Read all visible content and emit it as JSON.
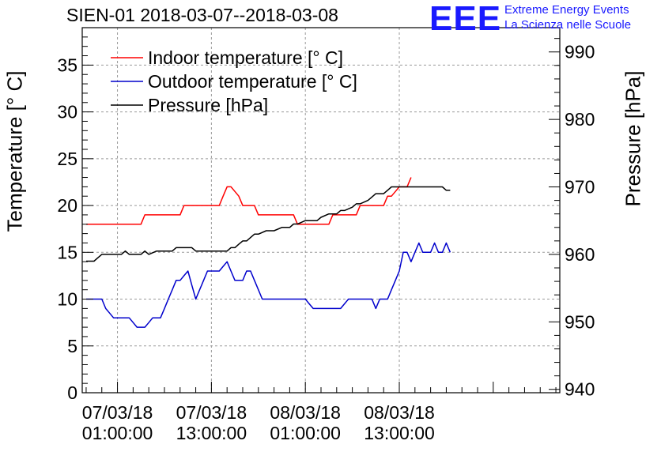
{
  "chart_data": {
    "type": "line",
    "title": "SIEN-01 2018-03-07--2018-03-08",
    "ylabel": "Temperature [° C]",
    "y2label": "Pressure [hPa]",
    "ylim": [
      0,
      39
    ],
    "y2lim": [
      939.5,
      993.6
    ],
    "xlim": [
      -4.5,
      56.5
    ],
    "y_ticks": [
      0,
      5,
      10,
      15,
      20,
      25,
      30,
      35
    ],
    "y2_ticks": [
      940,
      950,
      960,
      970,
      980,
      990
    ],
    "x_ticks": [
      {
        "x": 0,
        "date": "07/03/18",
        "time": "01:00:00"
      },
      {
        "x": 12,
        "date": "07/03/18",
        "time": "13:00:00"
      },
      {
        "x": 24,
        "date": "08/03/18",
        "time": "01:00:00"
      },
      {
        "x": 36,
        "date": "08/03/18",
        "time": "13:00:00"
      }
    ],
    "grid": true,
    "legend_position": "top-left",
    "series": [
      {
        "name": "Indoor temperature [° C]",
        "axis": "left",
        "color": "#ff0000",
        "points": [
          [
            -4,
            18
          ],
          [
            -3,
            18
          ],
          [
            -2,
            18
          ],
          [
            -1,
            18
          ],
          [
            0,
            18
          ],
          [
            1,
            18
          ],
          [
            2,
            18
          ],
          [
            3,
            18
          ],
          [
            3.5,
            19
          ],
          [
            4,
            19
          ],
          [
            5,
            19
          ],
          [
            6,
            19
          ],
          [
            7,
            19
          ],
          [
            8,
            19
          ],
          [
            8.5,
            20
          ],
          [
            9,
            20
          ],
          [
            10,
            20
          ],
          [
            11,
            20
          ],
          [
            12,
            20
          ],
          [
            13,
            20
          ],
          [
            13.5,
            21
          ],
          [
            14,
            22
          ],
          [
            14.5,
            22
          ],
          [
            15,
            21.5
          ],
          [
            15.5,
            21
          ],
          [
            16,
            20
          ],
          [
            17,
            20
          ],
          [
            17.5,
            20
          ],
          [
            18,
            19
          ],
          [
            19,
            19
          ],
          [
            20,
            19
          ],
          [
            21,
            19
          ],
          [
            22,
            19
          ],
          [
            22.5,
            19
          ],
          [
            23,
            18
          ],
          [
            24,
            18
          ],
          [
            25,
            18
          ],
          [
            26,
            18
          ],
          [
            27,
            18
          ],
          [
            27.5,
            19
          ],
          [
            28,
            19
          ],
          [
            29,
            19
          ],
          [
            30,
            19
          ],
          [
            30.5,
            19
          ],
          [
            31,
            20
          ],
          [
            32,
            20
          ],
          [
            33,
            20
          ],
          [
            34,
            20
          ],
          [
            34.5,
            21
          ],
          [
            35,
            21
          ],
          [
            35.5,
            21.5
          ],
          [
            36,
            22
          ],
          [
            37,
            22
          ],
          [
            37.5,
            23
          ]
        ]
      },
      {
        "name": "Outdoor temperature [° C]",
        "axis": "left",
        "color": "#0000cc",
        "points": [
          [
            -4,
            10
          ],
          [
            -3,
            10
          ],
          [
            -2,
            10
          ],
          [
            -1.5,
            9
          ],
          [
            -1,
            8.5
          ],
          [
            -0.5,
            8
          ],
          [
            0,
            8
          ],
          [
            1,
            8
          ],
          [
            1.5,
            8
          ],
          [
            2,
            7.5
          ],
          [
            2.5,
            7
          ],
          [
            3,
            7
          ],
          [
            3.5,
            7
          ],
          [
            4,
            7.5
          ],
          [
            4.5,
            8
          ],
          [
            5,
            8
          ],
          [
            5.5,
            8
          ],
          [
            6,
            9
          ],
          [
            6.5,
            10
          ],
          [
            7,
            11
          ],
          [
            7.5,
            12
          ],
          [
            8,
            12
          ],
          [
            8.5,
            12.5
          ],
          [
            9,
            13
          ],
          [
            9.5,
            11.5
          ],
          [
            10,
            10
          ],
          [
            10.5,
            11
          ],
          [
            11,
            12
          ],
          [
            11.5,
            13
          ],
          [
            12,
            13
          ],
          [
            12.5,
            13
          ],
          [
            13,
            13
          ],
          [
            13.5,
            13.5
          ],
          [
            14,
            14
          ],
          [
            14.5,
            13
          ],
          [
            15,
            12
          ],
          [
            15.5,
            12
          ],
          [
            16,
            12
          ],
          [
            16.5,
            13
          ],
          [
            17,
            13
          ],
          [
            17.5,
            12
          ],
          [
            18,
            11
          ],
          [
            18.5,
            10
          ],
          [
            19,
            10
          ],
          [
            20,
            10
          ],
          [
            21,
            10
          ],
          [
            22,
            10
          ],
          [
            23,
            10
          ],
          [
            24,
            10
          ],
          [
            24.5,
            9.5
          ],
          [
            25,
            9
          ],
          [
            26,
            9
          ],
          [
            27,
            9
          ],
          [
            28,
            9
          ],
          [
            28.5,
            9
          ],
          [
            29,
            9.5
          ],
          [
            29.5,
            10
          ],
          [
            30,
            10
          ],
          [
            31,
            10
          ],
          [
            32,
            10
          ],
          [
            32.5,
            10
          ],
          [
            33,
            9
          ],
          [
            33.5,
            10
          ],
          [
            34,
            10
          ],
          [
            34.5,
            10
          ],
          [
            35,
            11
          ],
          [
            35.5,
            12
          ],
          [
            36,
            13
          ],
          [
            36.5,
            15
          ],
          [
            37,
            15
          ],
          [
            37.5,
            14
          ],
          [
            38,
            15
          ],
          [
            38.5,
            16
          ],
          [
            39,
            15
          ],
          [
            39.5,
            15
          ],
          [
            40,
            15
          ],
          [
            40.5,
            16
          ],
          [
            41,
            15
          ],
          [
            41.5,
            15
          ],
          [
            42,
            16
          ],
          [
            42.5,
            15
          ]
        ]
      },
      {
        "name": "Pressure [hPa]",
        "axis": "right",
        "color": "#000000",
        "points": [
          [
            -4,
            959
          ],
          [
            -3,
            959
          ],
          [
            -2.5,
            959.5
          ],
          [
            -2,
            960
          ],
          [
            -1,
            960
          ],
          [
            0,
            960
          ],
          [
            0.5,
            960
          ],
          [
            1,
            960.5
          ],
          [
            1.5,
            960
          ],
          [
            2,
            960
          ],
          [
            3,
            960
          ],
          [
            3.5,
            960.5
          ],
          [
            4,
            960
          ],
          [
            5,
            960.5
          ],
          [
            6,
            960.5
          ],
          [
            7,
            960.5
          ],
          [
            7.5,
            961
          ],
          [
            8,
            961
          ],
          [
            9,
            961
          ],
          [
            9.5,
            961
          ],
          [
            10,
            960.5
          ],
          [
            11,
            960.5
          ],
          [
            12,
            960.5
          ],
          [
            13,
            960.5
          ],
          [
            14,
            960.5
          ],
          [
            14.5,
            961
          ],
          [
            15,
            961
          ],
          [
            15.5,
            961.5
          ],
          [
            16,
            962
          ],
          [
            16.5,
            962
          ],
          [
            17,
            962.5
          ],
          [
            17.5,
            963
          ],
          [
            18,
            963
          ],
          [
            19,
            963.5
          ],
          [
            20,
            963.5
          ],
          [
            21,
            964
          ],
          [
            22,
            964
          ],
          [
            22.5,
            964.5
          ],
          [
            23,
            964.5
          ],
          [
            24,
            965
          ],
          [
            25,
            965
          ],
          [
            25.5,
            965
          ],
          [
            26,
            965.5
          ],
          [
            27,
            966
          ],
          [
            28,
            966
          ],
          [
            28.5,
            966.5
          ],
          [
            29,
            966.5
          ],
          [
            30,
            967
          ],
          [
            30.5,
            967.5
          ],
          [
            31,
            967.5
          ],
          [
            32,
            968
          ],
          [
            32.5,
            968.5
          ],
          [
            33,
            969
          ],
          [
            34,
            969
          ],
          [
            34.5,
            969.5
          ],
          [
            35,
            970
          ],
          [
            35.5,
            970
          ],
          [
            36,
            970
          ],
          [
            37,
            970
          ],
          [
            38,
            970
          ],
          [
            39,
            970
          ],
          [
            40,
            970
          ],
          [
            41,
            970
          ],
          [
            41.5,
            970
          ],
          [
            42,
            969.5
          ],
          [
            42.5,
            969.5
          ]
        ]
      }
    ]
  }
}
